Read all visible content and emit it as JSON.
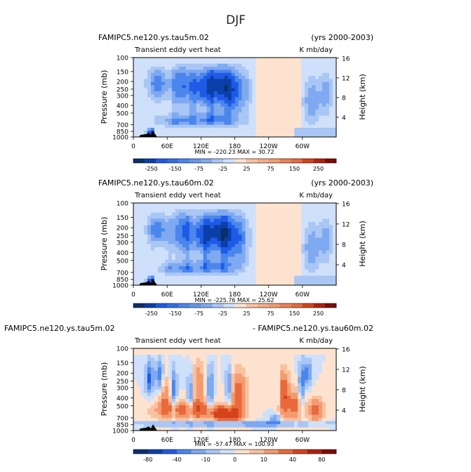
{
  "page_title": "DJF",
  "colors": {
    "neg": [
      "#08306b",
      "#0a3fa8",
      "#1e5ae6",
      "#4a86ec",
      "#7fa9f0",
      "#a9c6f5",
      "#cfe0fa"
    ],
    "pos": [
      "#fde3cf",
      "#f9c1a0",
      "#f39b6f",
      "#e86a3c",
      "#d6421b",
      "#b3200d",
      "#7f0c05"
    ]
  },
  "chart_data": [
    {
      "type": "heatmap",
      "title_left": "FAMIPC5.ne120.ys.tau5m.02",
      "title_right": "(yrs 2000-2003)",
      "subtitle_left": "Transient eddy vert heat",
      "subtitle_right": "K mb/day",
      "xticks": [
        "0",
        "60E",
        "120E",
        "180",
        "120W",
        "60W"
      ],
      "yticks_left": [
        "100",
        "150",
        "200",
        "250",
        "300",
        "400",
        "500",
        "700",
        "850",
        "1000"
      ],
      "yticks_right": [
        "16",
        "12",
        "8",
        "4"
      ],
      "ylabel_left": "Pressure  (mb)",
      "ylabel_right": "Height  (km)",
      "stats": "MIN = -220.23   MAX = 30.72",
      "colorbar_labels": [
        "-250",
        "-150",
        "-75",
        "-25",
        "25",
        "75",
        "150",
        "250"
      ],
      "pattern": "negative"
    },
    {
      "type": "heatmap",
      "title_left": "FAMIPC5.ne120.ys.tau60m.02",
      "title_right": "(yrs 2000-2003)",
      "subtitle_left": "Transient eddy vert heat",
      "subtitle_right": "K mb/day",
      "xticks": [
        "0",
        "60E",
        "120E",
        "180",
        "120W",
        "60W"
      ],
      "yticks_left": [
        "100",
        "150",
        "200",
        "250",
        "300",
        "400",
        "500",
        "700",
        "850",
        "1000"
      ],
      "yticks_right": [
        "16",
        "12",
        "8",
        "4"
      ],
      "ylabel_left": "Pressure  (mb)",
      "ylabel_right": "Height  (km)",
      "stats": "MIN = -225.76   MAX = 25.62",
      "colorbar_labels": [
        "-250",
        "-150",
        "-75",
        "-25",
        "25",
        "75",
        "150",
        "250"
      ],
      "pattern": "negative"
    },
    {
      "type": "heatmap",
      "title_left": "FAMIPC5.ne120.ys.tau5m.02",
      "title_right": "- FAMIPC5.ne120.ys.tau60m.02",
      "subtitle_left": "Transient eddy vert heat",
      "subtitle_right": "K mb/day",
      "xticks": [
        "0",
        "60E",
        "120E",
        "180",
        "120W",
        "60W"
      ],
      "yticks_left": [
        "100",
        "150",
        "200",
        "250",
        "300",
        "400",
        "500",
        "700",
        "850",
        "1000"
      ],
      "yticks_right": [
        "16",
        "12",
        "8",
        "4"
      ],
      "ylabel_left": "Pressure  (mb)",
      "ylabel_right": "Height  (km)",
      "stats": "MIN = -57.47   MAX = 100.93",
      "colorbar_labels": [
        "-80",
        "-40",
        "-10",
        "0",
        "10",
        "40",
        "80"
      ],
      "pattern": "difference"
    }
  ]
}
